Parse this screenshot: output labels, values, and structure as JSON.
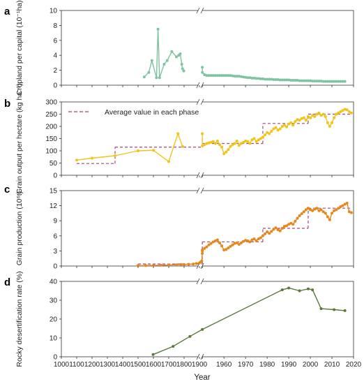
{
  "colors": {
    "panel_a": "#7fc4a0",
    "panel_b": "#f0c419",
    "panel_c": "#e8861a",
    "panel_d": "#5b7a3a",
    "phase_line": "#a8457c"
  },
  "legend": {
    "label": "Average value in each phase"
  },
  "x_axis": {
    "title": "Year",
    "tick_labels": [
      "1000",
      "1100",
      "1200",
      "1300",
      "1400",
      "1500",
      "1600",
      "1700",
      "1800",
      "1900",
      "1950",
      "1960",
      "1970",
      "1980",
      "1990",
      "2000",
      "2010",
      "2020"
    ]
  },
  "chart_data": [
    {
      "panel": "a",
      "type": "line",
      "ylabel": "Cropland per capital (10⁻¹ha)",
      "ylim": [
        0,
        10
      ],
      "yticks": [
        0,
        2,
        4,
        6,
        8,
        10
      ],
      "series": [
        {
          "x": [
            1540,
            1570,
            1590,
            1620,
            1630,
            1640,
            1670,
            1690,
            1720,
            1750,
            1765,
            1775,
            1785,
            1790,
            1798
          ],
          "y": [
            1.1,
            1.7,
            3.3,
            1.0,
            7.5,
            1.0,
            2.8,
            3.3,
            4.5,
            3.8,
            4.0,
            4.2,
            2.8,
            2.2,
            1.9
          ]
        },
        {
          "x": [
            1949,
            1950,
            1951,
            1952,
            1953,
            1954,
            1955,
            1956,
            1957,
            1958,
            1959,
            1960,
            1961,
            1962,
            1963,
            1964,
            1965,
            1966,
            1967,
            1968,
            1969,
            1970,
            1971,
            1972,
            1973,
            1974,
            1975,
            1976,
            1977,
            1978,
            1979,
            1980,
            1981,
            1982,
            1983,
            1984,
            1985,
            1986,
            1987,
            1988,
            1989,
            1990,
            1991,
            1992,
            1993,
            1994,
            1995,
            1996,
            1997,
            1998,
            1999,
            2000,
            2001,
            2002,
            2003,
            2004,
            2005,
            2006,
            2007,
            2008,
            2009,
            2010,
            2011,
            2012,
            2013,
            2014,
            2015,
            2016
          ],
          "y": [
            2.4,
            1.7,
            1.4,
            1.3,
            1.3,
            1.3,
            1.3,
            1.3,
            1.3,
            1.3,
            1.3,
            1.3,
            1.3,
            1.3,
            1.3,
            1.25,
            1.2,
            1.2,
            1.2,
            1.15,
            1.1,
            1.05,
            1.0,
            1.0,
            0.95,
            0.95,
            0.9,
            0.9,
            0.85,
            0.85,
            0.8,
            0.8,
            0.8,
            0.8,
            0.75,
            0.75,
            0.75,
            0.7,
            0.7,
            0.7,
            0.7,
            0.7,
            0.65,
            0.65,
            0.65,
            0.65,
            0.6,
            0.6,
            0.6,
            0.6,
            0.6,
            0.6,
            0.55,
            0.55,
            0.55,
            0.55,
            0.55,
            0.5,
            0.5,
            0.5,
            0.5,
            0.5,
            0.5,
            0.5,
            0.5,
            0.5,
            0.5,
            0.5
          ]
        }
      ]
    },
    {
      "panel": "b",
      "type": "line",
      "ylabel": "Grain output per hectare (kg ha⁻¹)",
      "ylim": [
        0,
        300
      ],
      "yticks": [
        0,
        50,
        100,
        150,
        200,
        250,
        300
      ],
      "series": [
        {
          "x": [
            1100,
            1200,
            1350,
            1500,
            1600,
            1700,
            1760,
            1790
          ],
          "y": [
            62,
            70,
            80,
            100,
            102,
            56,
            170,
            118
          ]
        },
        {
          "x": [
            1949,
            1950,
            1951,
            1952,
            1953,
            1954,
            1955,
            1956,
            1957,
            1958,
            1959,
            1960,
            1961,
            1962,
            1963,
            1964,
            1965,
            1966,
            1967,
            1968,
            1969,
            1970,
            1971,
            1972,
            1973,
            1974,
            1975,
            1976,
            1977,
            1978,
            1979,
            1980,
            1981,
            1982,
            1983,
            1984,
            1985,
            1986,
            1987,
            1988,
            1989,
            1990,
            1991,
            1992,
            1993,
            1994,
            1995,
            1996,
            1997,
            1998,
            1999,
            2000,
            2001,
            2002,
            2003,
            2004,
            2005,
            2006,
            2007,
            2008,
            2009,
            2010,
            2011,
            2012,
            2013,
            2014,
            2015,
            2016,
            2017,
            2018,
            2019
          ],
          "y": [
            170,
            120,
            125,
            130,
            132,
            135,
            138,
            130,
            140,
            125,
            115,
            88,
            95,
            105,
            118,
            125,
            130,
            140,
            122,
            130,
            135,
            140,
            138,
            130,
            145,
            150,
            138,
            145,
            150,
            155,
            165,
            175,
            170,
            180,
            190,
            195,
            185,
            190,
            200,
            205,
            198,
            210,
            215,
            205,
            220,
            228,
            225,
            232,
            235,
            225,
            240,
            235,
            245,
            240,
            250,
            255,
            245,
            250,
            240,
            215,
            200,
            215,
            235,
            250,
            255,
            260,
            265,
            270,
            268,
            260,
            255
          ]
        }
      ],
      "phases": [
        {
          "x0": 1100,
          "x1": 1350,
          "y": 48
        },
        {
          "x0": 1350,
          "x1": 1949,
          "y": 115
        },
        {
          "x0": 1949,
          "x1": 1978,
          "y": 130
        },
        {
          "x0": 1978,
          "x1": 1999,
          "y": 212
        },
        {
          "x0": 1999,
          "x1": 2019,
          "y": 250
        }
      ]
    },
    {
      "panel": "c",
      "type": "line",
      "ylabel": "Grain production (10⁶t)",
      "ylim": [
        0,
        15
      ],
      "yticks": [
        0,
        3,
        6,
        9,
        12,
        15
      ],
      "series": [
        {
          "x": [
            1500,
            1550,
            1600,
            1650,
            1700,
            1750,
            1780,
            1800,
            1830,
            1860,
            1880,
            1900,
            1920,
            1940,
            1949
          ],
          "y": [
            0.1,
            0.1,
            0.12,
            0.15,
            0.2,
            0.25,
            0.3,
            0.3,
            0.35,
            0.4,
            0.5,
            0.6,
            0.8,
            1.0,
            2.5
          ]
        },
        {
          "x": [
            1949,
            1950,
            1951,
            1952,
            1953,
            1954,
            1955,
            1956,
            1957,
            1958,
            1959,
            1960,
            1961,
            1962,
            1963,
            1964,
            1965,
            1966,
            1967,
            1968,
            1969,
            1970,
            1971,
            1972,
            1973,
            1974,
            1975,
            1976,
            1977,
            1978,
            1979,
            1980,
            1981,
            1982,
            1983,
            1984,
            1985,
            1986,
            1987,
            1988,
            1989,
            1990,
            1991,
            1992,
            1993,
            1994,
            1995,
            1996,
            1997,
            1998,
            1999,
            2000,
            2001,
            2002,
            2003,
            2004,
            2005,
            2006,
            2007,
            2008,
            2009,
            2010,
            2011,
            2012,
            2013,
            2014,
            2015,
            2016,
            2017,
            2018,
            2019
          ],
          "y": [
            3.0,
            3.2,
            3.5,
            3.8,
            4.2,
            4.5,
            4.8,
            5.0,
            5.2,
            4.6,
            4.0,
            3.2,
            3.3,
            3.6,
            3.9,
            4.2,
            4.5,
            4.6,
            4.3,
            4.6,
            4.9,
            5.1,
            5.0,
            4.8,
            5.2,
            5.4,
            5.0,
            5.4,
            5.6,
            6.0,
            6.4,
            6.8,
            6.5,
            6.9,
            7.3,
            7.6,
            7.2,
            7.0,
            7.5,
            7.9,
            8.0,
            8.3,
            8.5,
            8.3,
            8.9,
            9.5,
            10.0,
            10.4,
            10.8,
            11.2,
            11.5,
            11.2,
            11.0,
            11.3,
            11.5,
            11.0,
            11.2,
            10.8,
            10.5,
            9.8,
            9.2,
            10.5,
            11.0,
            11.2,
            11.5,
            11.8,
            12.0,
            12.3,
            12.5,
            10.8,
            10.6
          ]
        }
      ],
      "phases": [
        {
          "x0": 1500,
          "x1": 1949,
          "y": 0.4
        },
        {
          "x0": 1949,
          "x1": 1978,
          "y": 4.8
        },
        {
          "x0": 1978,
          "x1": 1999,
          "y": 7.5
        },
        {
          "x0": 1999,
          "x1": 2019,
          "y": 11.5
        }
      ]
    },
    {
      "panel": "d",
      "type": "line",
      "ylabel": "Rocky desertification rate (%)",
      "ylim": [
        0,
        40
      ],
      "yticks": [
        0,
        10,
        20,
        30,
        40
      ],
      "series": [
        {
          "x": [
            1598,
            1728,
            1838,
            1949,
            1987,
            1990,
            1995,
            1999,
            2001,
            2005,
            2011,
            2016
          ],
          "y": [
            1.2,
            5.5,
            10.8,
            14.5,
            35.5,
            36.5,
            35.0,
            36.0,
            35.5,
            25.5,
            25.0,
            24.5
          ]
        }
      ]
    }
  ]
}
